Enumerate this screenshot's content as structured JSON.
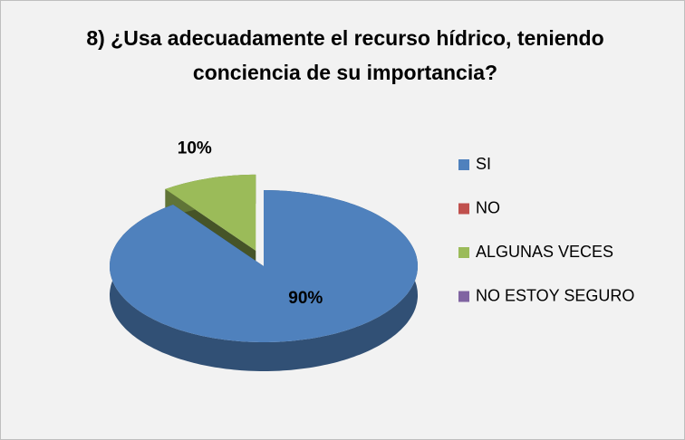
{
  "chart_data": {
    "type": "pie",
    "title": "8) ¿Usa adecuadamente el recurso hídrico, teniendo conciencia de su importancia?",
    "categories": [
      "SI",
      "NO",
      "ALGUNAS VECES",
      "NO ESTOY SEGURO"
    ],
    "values": [
      90,
      0,
      10,
      0
    ],
    "value_labels": [
      "90%",
      null,
      "10%",
      null
    ],
    "colors": [
      "#4f81bd",
      "#c0504d",
      "#9bbb59",
      "#8064a2"
    ],
    "legend": "right"
  }
}
